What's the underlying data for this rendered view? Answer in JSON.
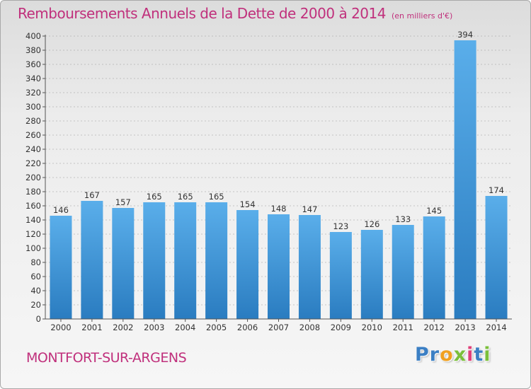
{
  "header": {
    "title": "Remboursements Annuels de la Dette de 2000 à 2014",
    "unit": "(en milliers d'€)"
  },
  "footer": {
    "place": "MONTFORT-SUR-ARGENS",
    "logo_letters": [
      {
        "ch": "P",
        "color": "#3b7fc4"
      },
      {
        "ch": "r",
        "color": "#3b7fc4"
      },
      {
        "ch": "o",
        "color": "#f0a020"
      },
      {
        "ch": "x",
        "color": "#7abf3a"
      },
      {
        "ch": "i",
        "color": "#e0407a"
      },
      {
        "ch": "t",
        "color": "#3b7fc4"
      },
      {
        "ch": "i",
        "color": "#7abf3a"
      }
    ]
  },
  "colors": {
    "title": "#c0307c",
    "bar_light": "#5aaeea",
    "bar_dark": "#2a7cc0",
    "grid": "#9a9a9a"
  },
  "chart_data": {
    "type": "bar",
    "categories": [
      "2000",
      "2001",
      "2002",
      "2003",
      "2004",
      "2005",
      "2006",
      "2007",
      "2008",
      "2009",
      "2010",
      "2011",
      "2012",
      "2013",
      "2014"
    ],
    "values": [
      146,
      167,
      157,
      165,
      165,
      165,
      154,
      148,
      147,
      123,
      126,
      133,
      145,
      394,
      174
    ],
    "title": "Remboursements Annuels de la Dette de 2000 à 2014",
    "ylim": [
      0,
      400
    ],
    "yticks": [
      0,
      20,
      40,
      60,
      80,
      100,
      120,
      140,
      160,
      180,
      200,
      220,
      240,
      260,
      280,
      300,
      320,
      340,
      360,
      380,
      400
    ],
    "grid": true,
    "data_labels": true
  }
}
